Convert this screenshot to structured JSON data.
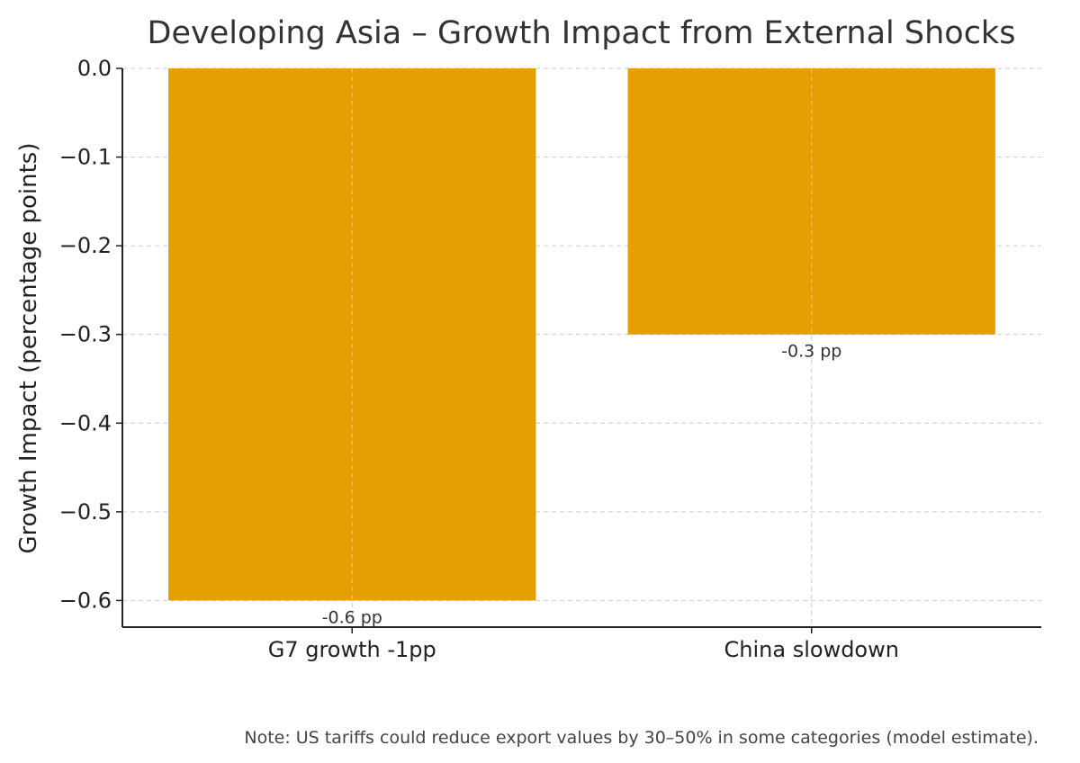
{
  "chart_data": {
    "type": "bar",
    "title": "Developing Asia – Growth Impact from External Shocks",
    "xlabel": "",
    "ylabel": "Growth Impact (percentage points)",
    "categories": [
      "G7 growth -1pp",
      "China slowdown"
    ],
    "values": [
      -0.6,
      -0.3
    ],
    "data_labels": [
      "-0.6 pp",
      "-0.3 pp"
    ],
    "ylim": [
      -0.63,
      0.0
    ],
    "yticks": [
      0.0,
      -0.1,
      -0.2,
      -0.3,
      -0.4,
      -0.5,
      -0.6
    ],
    "ytick_labels": [
      "0.0",
      "−0.1",
      "−0.2",
      "−0.3",
      "−0.4",
      "−0.5",
      "−0.6"
    ],
    "grid": true,
    "bar_color": "#E69F00",
    "note": "Note: US tariffs could reduce export values by 30–50% in some categories (model estimate)."
  }
}
